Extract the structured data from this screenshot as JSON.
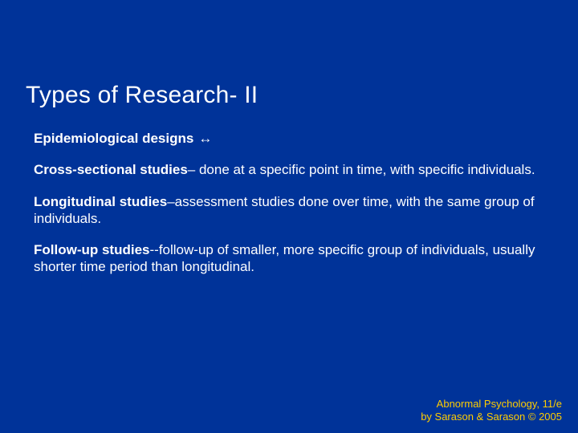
{
  "background_color": "#003399",
  "title_color": "#ffffff",
  "body_text_color": "#ffffff",
  "footer_color": "#ffcc00",
  "title": "Types of Research- II",
  "subheading_bold": "Epidemiological designs",
  "arrow_glyph": "↔",
  "item1_bold": "Cross-sectional studies",
  "item1_rest": "– done at a specific point in time, with specific individuals.",
  "item2_bold": "Longitudinal studies",
  "item2_rest": "–assessment studies done over time, with the same group of individuals.",
  "item3_bold": "Follow-up studies",
  "item3_rest": "--follow-up of smaller, more specific group of individuals, usually shorter time period than longitudinal.",
  "footer_line1": "Abnormal Psychology, 11/e",
  "footer_line2": "by Sarason & Sarason © 2005",
  "title_fontsize": 30,
  "body_fontsize": 17,
  "footer_fontsize": 13
}
